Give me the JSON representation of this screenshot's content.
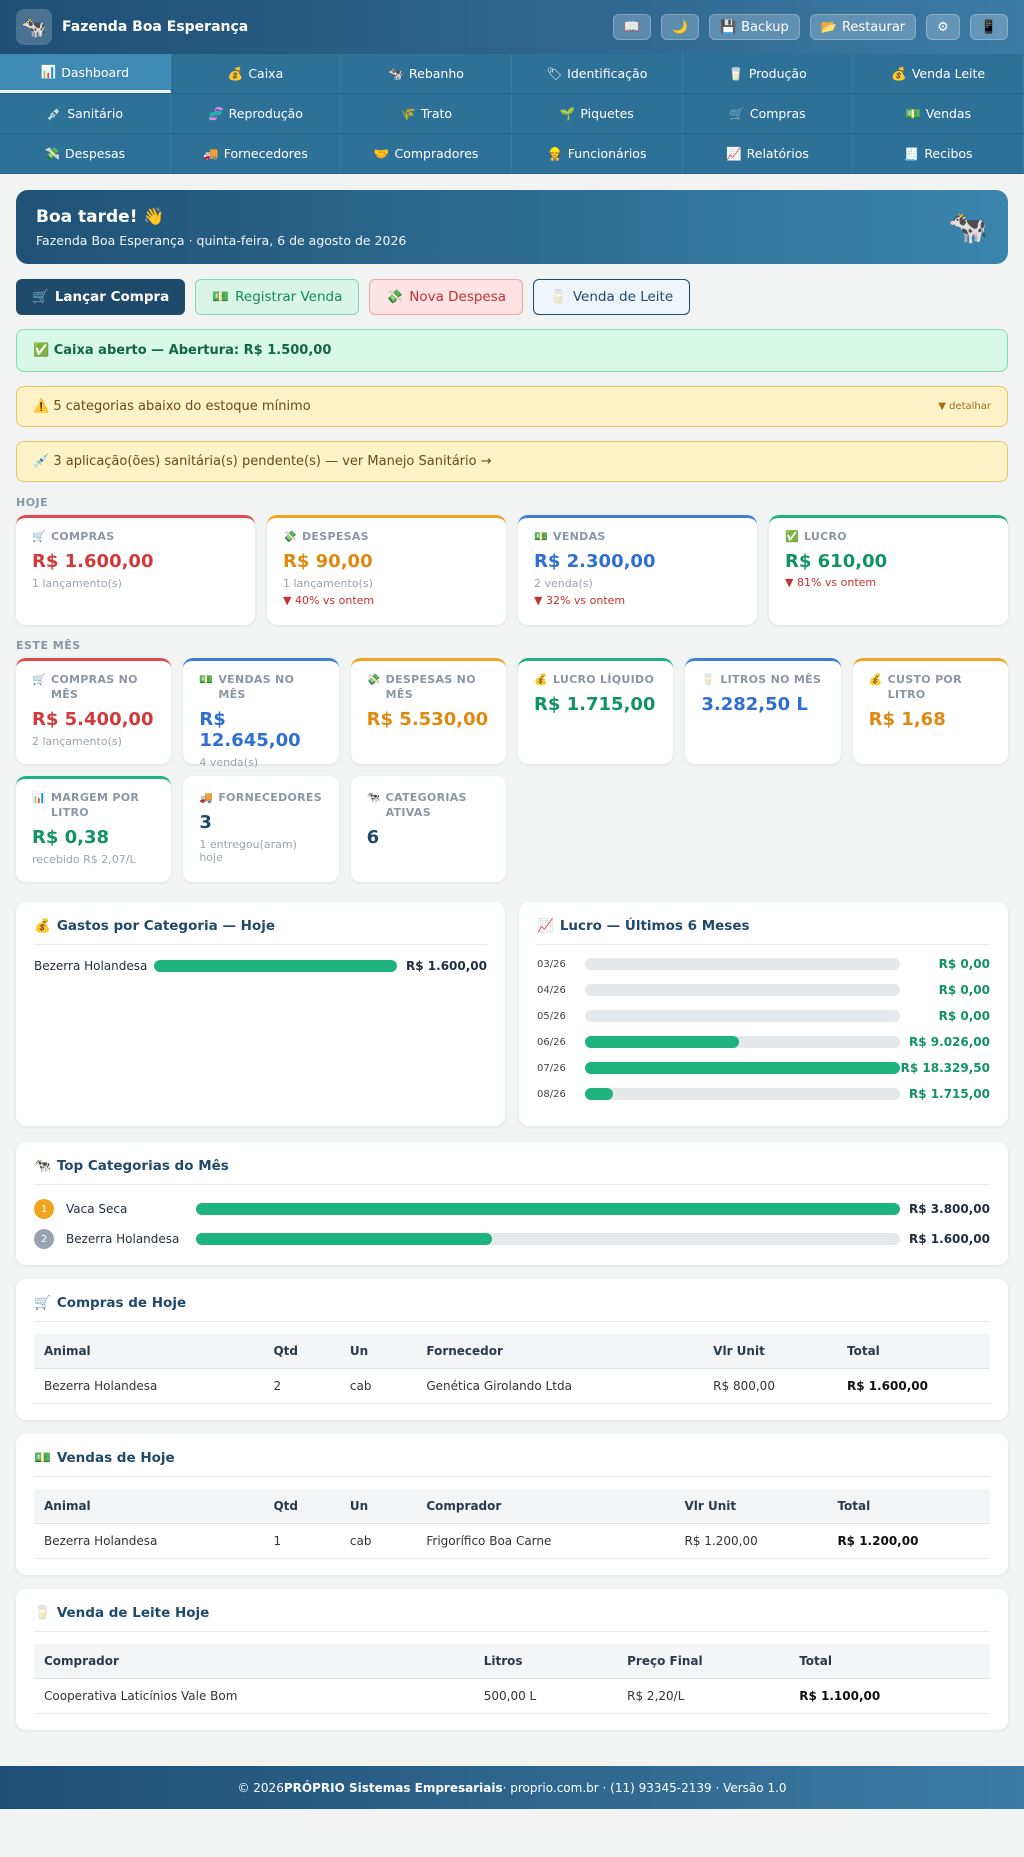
{
  "app": {
    "title": "Fazenda Boa Esperança",
    "logo_icon": "🐄"
  },
  "topbar": {
    "buttons": [
      {
        "icon": "📖",
        "label": ""
      },
      {
        "icon": "🌙",
        "label": ""
      },
      {
        "icon": "💾",
        "label": "Backup"
      },
      {
        "icon": "📂",
        "label": "Restaurar"
      },
      {
        "icon": "⚙",
        "label": ""
      },
      {
        "icon": "📱",
        "label": ""
      }
    ]
  },
  "nav": {
    "rows": [
      [
        {
          "icon": "📊",
          "label": "Dashboard"
        },
        {
          "icon": "💰",
          "label": "Caixa"
        },
        {
          "icon": "🐄",
          "label": "Rebanho"
        },
        {
          "icon": "🏷",
          "label": "Identificação"
        },
        {
          "icon": "🥛",
          "label": "Produção"
        },
        {
          "icon": "💰",
          "label": "Venda Leite"
        }
      ],
      [
        {
          "icon": "💉",
          "label": "Sanitário"
        },
        {
          "icon": "🧬",
          "label": "Reprodução"
        },
        {
          "icon": "🌾",
          "label": "Trato"
        },
        {
          "icon": "🌱",
          "label": "Piquetes"
        },
        {
          "icon": "🛒",
          "label": "Compras"
        },
        {
          "icon": "💵",
          "label": "Vendas"
        }
      ],
      [
        {
          "icon": "💸",
          "label": "Despesas"
        },
        {
          "icon": "🚚",
          "label": "Fornecedores"
        },
        {
          "icon": "🤝",
          "label": "Compradores"
        },
        {
          "icon": "👷",
          "label": "Funcionários"
        },
        {
          "icon": "📈",
          "label": "Relatórios"
        },
        {
          "icon": "🧾",
          "label": "Recibos"
        }
      ]
    ]
  },
  "greeting": {
    "title": "Boa tarde! 👋",
    "subtitle": "Fazenda Boa Esperança · quinta-feira, 6 de agosto de 2026",
    "icon": "🐄"
  },
  "actions": [
    {
      "icon": "🛒",
      "label": "Lançar Compra"
    },
    {
      "icon": "💵",
      "label": "Registrar Venda"
    },
    {
      "icon": "💸",
      "label": "Nova Despesa"
    },
    {
      "icon": "🥛",
      "label": "Venda de Leite"
    }
  ],
  "alerts": {
    "caixa": {
      "icon": "✅",
      "text": "Caixa aberto — Abertura: R$ 1.500,00"
    },
    "estoque": {
      "icon": "⚠️",
      "text": "5 categorias abaixo do estoque mínimo",
      "link": "▼ detalhar"
    },
    "sanitario": {
      "icon": "💉",
      "text": "3 aplicação(ões) sanitária(s) pendente(s) — ver Manejo Sanitário →"
    }
  },
  "hoje": {
    "label": "HOJE",
    "cards": [
      {
        "icon": "🛒",
        "label": "COMPRAS",
        "value": "R$ 1.600,00",
        "sub": "1 lançamento(s)",
        "delta": ""
      },
      {
        "icon": "💸",
        "label": "DESPESAS",
        "value": "R$ 90,00",
        "sub": "1 lançamento(s)",
        "delta": "▼ 40% vs ontem"
      },
      {
        "icon": "💵",
        "label": "VENDAS",
        "value": "R$ 2.300,00",
        "sub": "2 venda(s)",
        "delta": "▼ 32% vs ontem"
      },
      {
        "icon": "✅",
        "label": "LUCRO",
        "value": "R$ 610,00",
        "sub": "",
        "delta": "▼ 81% vs ontem"
      }
    ]
  },
  "mes": {
    "label": "ESTE MÊS",
    "cards": [
      {
        "icon": "🛒",
        "label": "COMPRAS NO MÊS",
        "value": "R$ 5.400,00",
        "sub": "2 lançamento(s)"
      },
      {
        "icon": "💵",
        "label": "VENDAS NO MÊS",
        "value": "R$ 12.645,00",
        "sub": "4 venda(s)"
      },
      {
        "icon": "💸",
        "label": "DESPESAS NO MÊS",
        "value": "R$ 5.530,00",
        "sub": ""
      },
      {
        "icon": "💰",
        "label": "LUCRO LÍQUIDO",
        "value": "R$ 1.715,00",
        "sub": ""
      },
      {
        "icon": "🥛",
        "label": "LITROS NO MÊS",
        "value": "3.282,50 L",
        "sub": ""
      },
      {
        "icon": "💰",
        "label": "CUSTO POR LITRO",
        "value": "R$ 1,68",
        "sub": ""
      },
      {
        "icon": "📊",
        "label": "MARGEM POR LITRO",
        "value": "R$ 0,38",
        "sub": "recebido R$ 2,07/L"
      },
      {
        "icon": "🚚",
        "label": "FORNECEDORES",
        "value": "3",
        "sub": "1 entregou(aram) hoje"
      },
      {
        "icon": "🐄",
        "label": "CATEGORIAS ATIVAS",
        "value": "6",
        "sub": ""
      }
    ]
  },
  "gastos": {
    "title": "Gastos por Categoria — Hoje",
    "icon": "💰",
    "items": [
      {
        "label": "Bezerra Holandesa",
        "amount": "R$ 1.600,00",
        "fraction": 1.0
      }
    ]
  },
  "lucro6": {
    "title": "Lucro — Últimos 6 Meses",
    "icon": "📈",
    "items": [
      {
        "month": "03/26",
        "amount": "R$ 0,00",
        "fraction": 0
      },
      {
        "month": "04/26",
        "amount": "R$ 0,00",
        "fraction": 0
      },
      {
        "month": "05/26",
        "amount": "R$ 0,00",
        "fraction": 0
      },
      {
        "month": "06/26",
        "amount": "R$ 9.026,00",
        "fraction": 0.49
      },
      {
        "month": "07/26",
        "amount": "R$ 18.329,50",
        "fraction": 1.0
      },
      {
        "month": "08/26",
        "amount": "R$ 1.715,00",
        "fraction": 0.09
      }
    ]
  },
  "top": {
    "title": "Top Categorias do Mês",
    "icon": "🐄",
    "items": [
      {
        "rank": "1",
        "label": "Vaca Seca",
        "amount": "R$ 3.800,00",
        "fraction": 1.0,
        "color": "#f0a420"
      },
      {
        "rank": "2",
        "label": "Bezerra Holandesa",
        "amount": "R$ 1.600,00",
        "fraction": 0.42,
        "color": "#9aa4ae"
      }
    ]
  },
  "compras": {
    "title": "Compras de Hoje",
    "icon": "🛒",
    "headers": [
      "Animal",
      "Qtd",
      "Un",
      "Fornecedor",
      "Vlr Unit",
      "Total"
    ],
    "rows": [
      [
        "Bezerra Holandesa",
        "2",
        "cab",
        "Genética Girolando Ltda",
        "R$ 800,00",
        "R$ 1.600,00"
      ]
    ]
  },
  "vendas": {
    "title": "Vendas de Hoje",
    "icon": "💵",
    "headers": [
      "Animal",
      "Qtd",
      "Un",
      "Comprador",
      "Vlr Unit",
      "Total"
    ],
    "rows": [
      [
        "Bezerra Holandesa",
        "1",
        "cab",
        "Frigorífico Boa Carne",
        "R$ 1.200,00",
        "R$ 1.200,00"
      ]
    ]
  },
  "leite": {
    "title": "Venda de Leite Hoje",
    "icon": "🥛",
    "headers": [
      "Comprador",
      "Litros",
      "Preço Final",
      "Total"
    ],
    "rows": [
      [
        "Cooperativa Laticínios Vale Bom",
        "500,00 L",
        "R$ 2,20/L",
        "R$ 1.100,00"
      ]
    ]
  },
  "footer": {
    "prefix": "© 2026 ",
    "company": "PRÓPRIO Sistemas Empresariais",
    "suffix": " · proprio.com.br · (11) 93345-2139 · Versão 1.0"
  }
}
